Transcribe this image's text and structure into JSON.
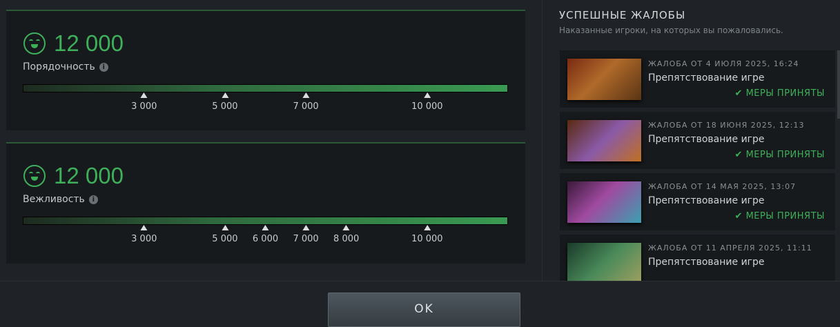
{
  "meters": [
    {
      "value_label": "12 000",
      "value": 12000,
      "label": "Порядочность",
      "ticks": [
        "3 000",
        "5 000",
        "7 000",
        "10 000"
      ],
      "tick_values": [
        3000,
        5000,
        7000,
        10000
      ]
    },
    {
      "value_label": "12 000",
      "value": 12000,
      "label": "Вежливость",
      "ticks": [
        "3 000",
        "5 000",
        "6 000",
        "7 000",
        "8 000",
        "10 000"
      ],
      "tick_values": [
        3000,
        5000,
        6000,
        7000,
        8000,
        10000
      ]
    }
  ],
  "scale_max": 12000,
  "reports": {
    "title": "УСПЕШНЫЕ ЖАЛОБЫ",
    "subtitle": "Наказанные игроки, на которых вы пожаловались.",
    "items": [
      {
        "date": "ЖАЛОБА ОТ 4 ИЮЛЯ 2025, 16:24",
        "reason": "Препятствование игре",
        "status": "МЕРЫ ПРИНЯТЫ"
      },
      {
        "date": "ЖАЛОБА ОТ 18 ИЮНЯ 2025, 12:13",
        "reason": "Препятствование игре",
        "status": "МЕРЫ ПРИНЯТЫ"
      },
      {
        "date": "ЖАЛОБА ОТ 14 МАЯ 2025, 13:07",
        "reason": "Препятствование игре",
        "status": "МЕРЫ ПРИНЯТЫ"
      },
      {
        "date": "ЖАЛОБА ОТ 11 АПРЕЛЯ 2025, 11:11",
        "reason": "Препятствование игре",
        "status": ""
      }
    ]
  },
  "ok_label": "OK",
  "colors": {
    "accent": "#3fb05a",
    "panel": "#171a1d",
    "background": "#1f2327"
  }
}
